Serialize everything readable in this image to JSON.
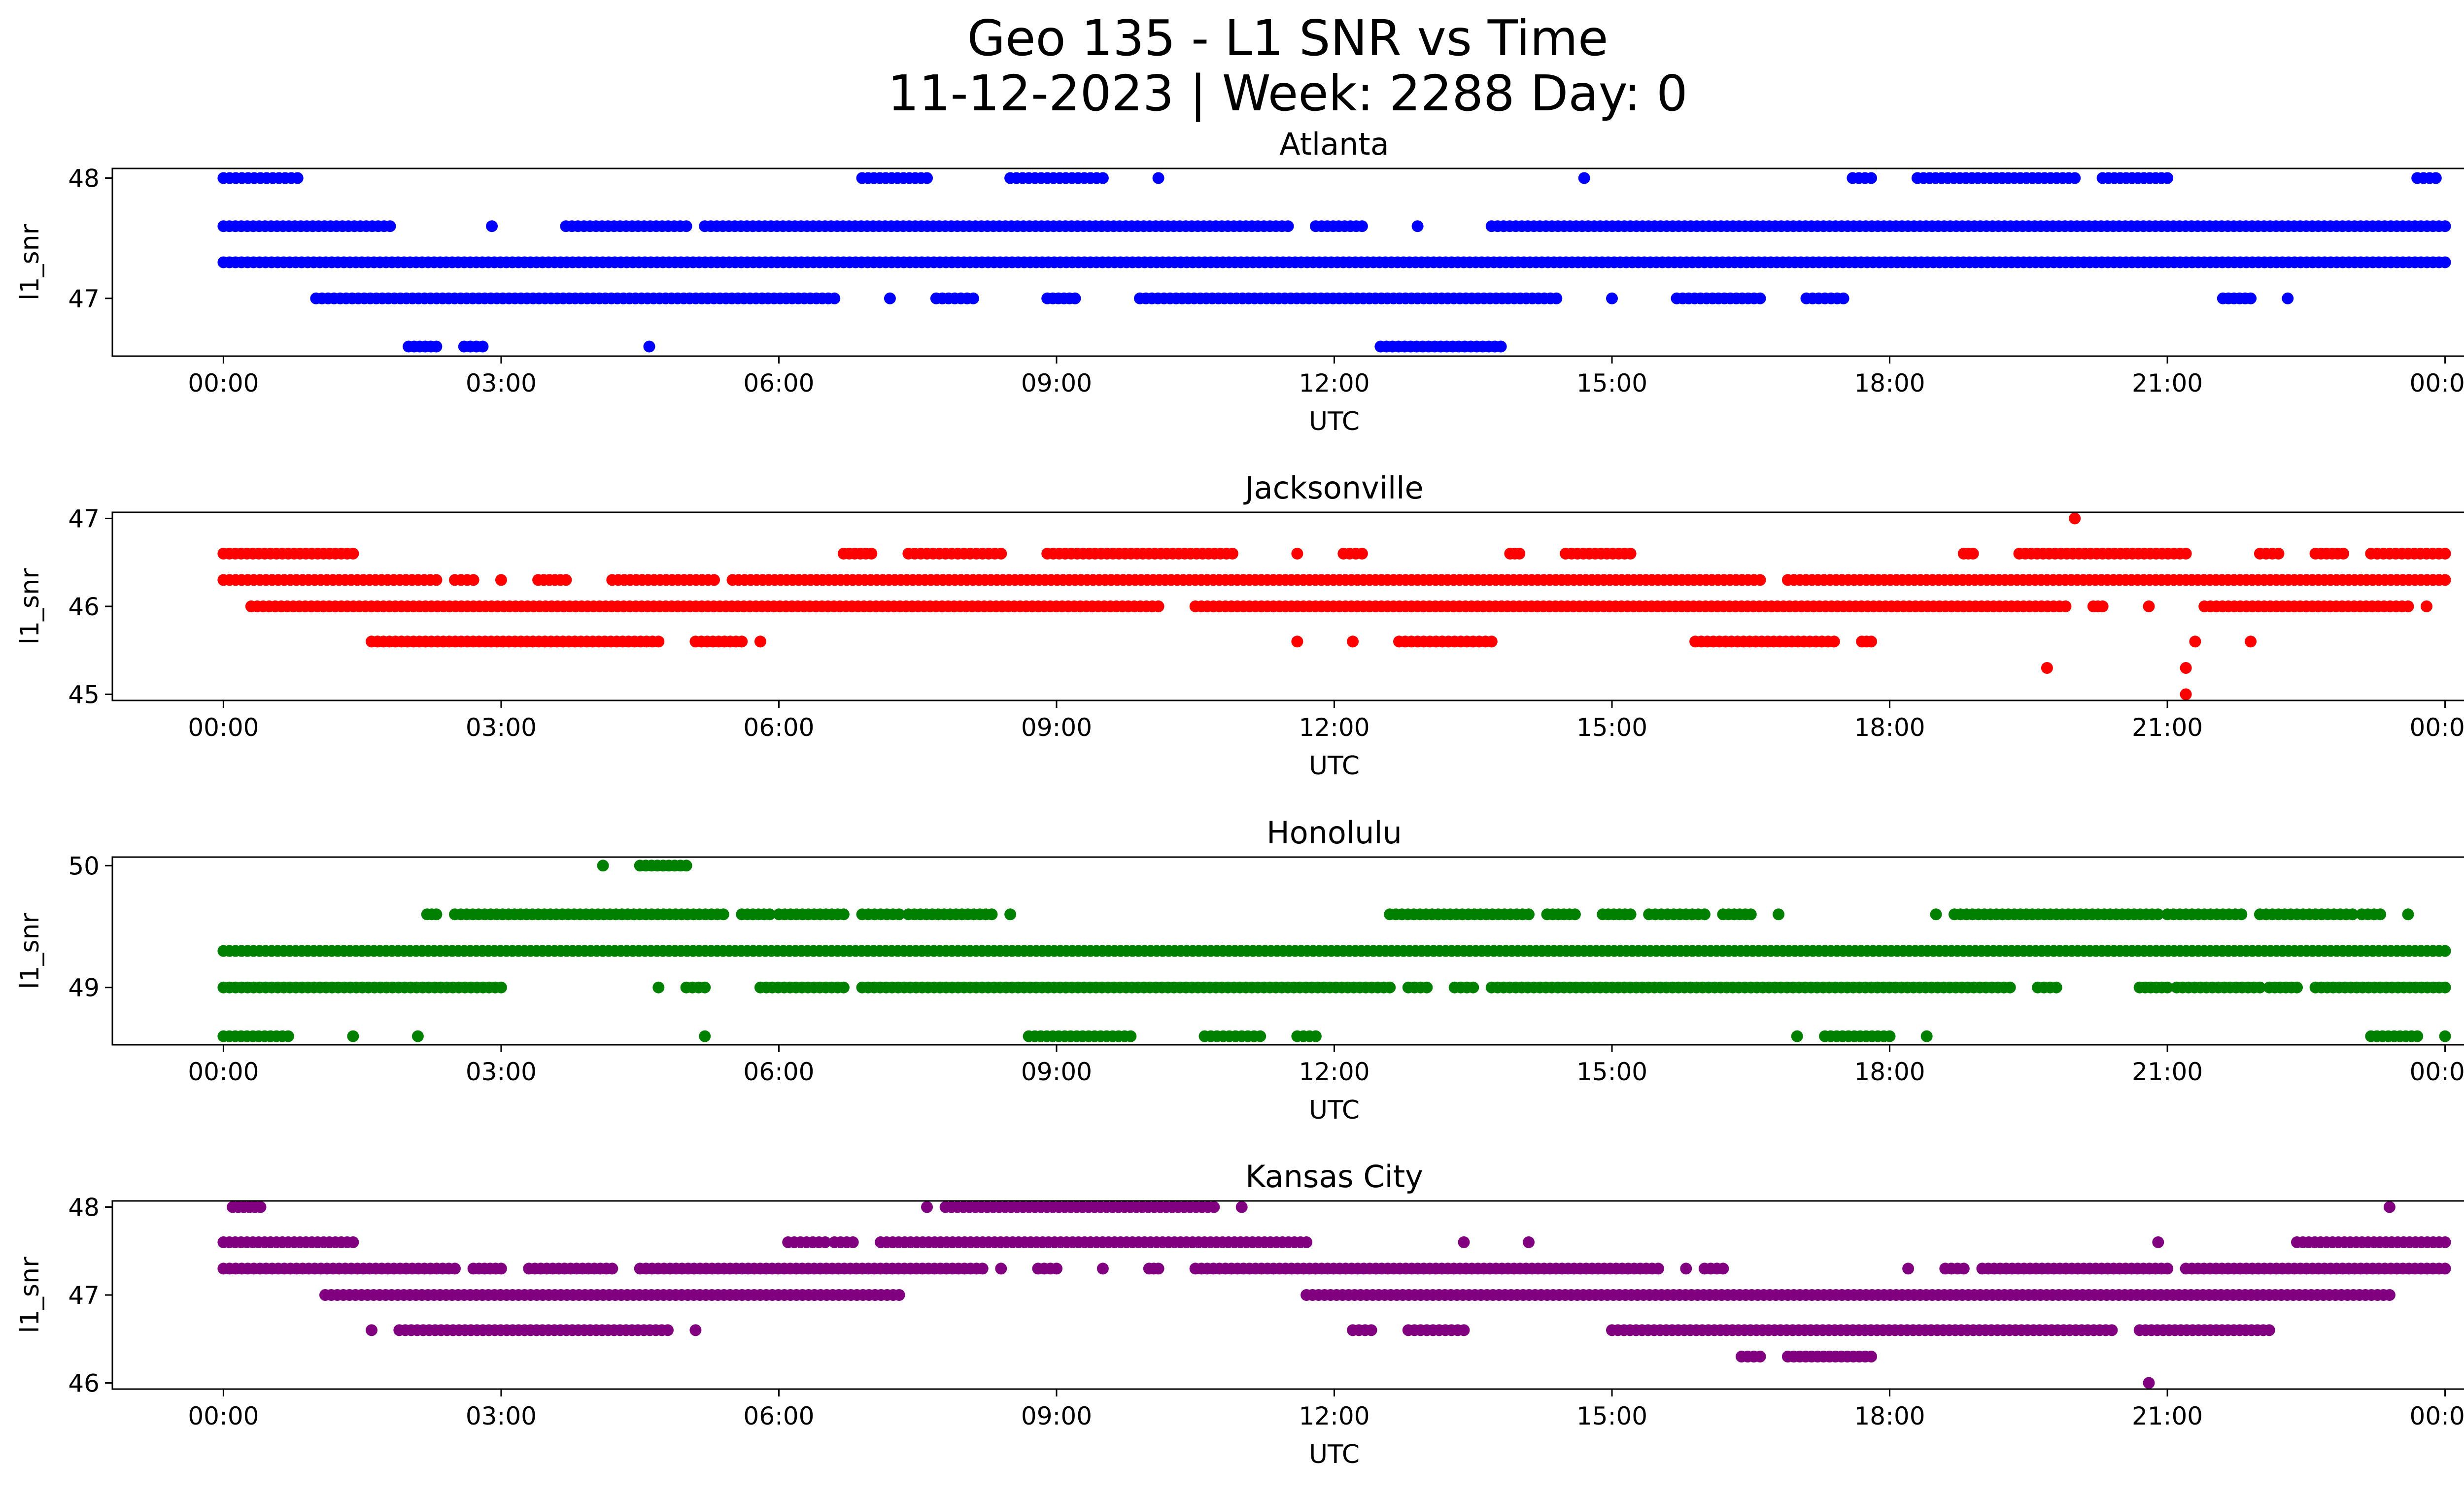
{
  "figure": {
    "title_line1": "Geo 135 - L1 SNR vs Time",
    "title_line2": "11-12-2023 | Week: 2288 Day: 0"
  },
  "chart_data": [
    {
      "type": "scatter",
      "title": "Atlanta",
      "xlabel": "UTC",
      "ylabel": "l1_snr",
      "color": "#0000ff",
      "x_ticks": [
        "00:00",
        "03:00",
        "06:00",
        "09:00",
        "12:00",
        "15:00",
        "18:00",
        "21:00",
        "00:00"
      ],
      "y_ticks": [
        47,
        48
      ],
      "xlim_hours": [
        -1.2,
        25.2
      ],
      "ylim": [
        46.52,
        48.08
      ],
      "grid": false,
      "legend": "none",
      "series": [
        {
          "y": 48.0,
          "x_ranges": [
            [
              0.0,
              0.8
            ],
            [
              6.9,
              7.6
            ],
            [
              8.5,
              9.5
            ],
            [
              10.1,
              10.1
            ],
            [
              14.7,
              14.7
            ],
            [
              17.6,
              17.8
            ],
            [
              18.3,
              20.0
            ],
            [
              20.3,
              21.0
            ],
            [
              23.7,
              23.9
            ]
          ]
        },
        {
          "y": 47.6,
          "x_ranges": [
            [
              0.0,
              1.8
            ],
            [
              2.9,
              2.9
            ],
            [
              3.7,
              5.0
            ],
            [
              5.2,
              11.5
            ],
            [
              11.8,
              12.3
            ],
            [
              12.9,
              12.9
            ],
            [
              13.7,
              24.0
            ]
          ]
        },
        {
          "y": 47.3,
          "x_ranges": [
            [
              0.0,
              24.0
            ]
          ]
        },
        {
          "y": 47.0,
          "x_ranges": [
            [
              1.0,
              6.6
            ],
            [
              7.2,
              7.2
            ],
            [
              7.7,
              8.1
            ],
            [
              8.9,
              9.2
            ],
            [
              9.9,
              14.4
            ],
            [
              15.0,
              15.0
            ],
            [
              15.7,
              16.6
            ],
            [
              17.1,
              17.5
            ],
            [
              21.6,
              21.9
            ],
            [
              22.3,
              22.3
            ]
          ]
        },
        {
          "y": 46.6,
          "x_ranges": [
            [
              2.0,
              2.3
            ],
            [
              2.6,
              2.8
            ],
            [
              4.6,
              4.6
            ],
            [
              12.5,
              13.8
            ]
          ]
        }
      ]
    },
    {
      "type": "scatter",
      "title": "Jacksonville",
      "xlabel": "UTC",
      "ylabel": "l1_snr",
      "color": "#ff0000",
      "x_ticks": [
        "00:00",
        "03:00",
        "06:00",
        "09:00",
        "12:00",
        "15:00",
        "18:00",
        "21:00",
        "00:00"
      ],
      "y_ticks": [
        45,
        46,
        47
      ],
      "xlim_hours": [
        -1.2,
        25.2
      ],
      "ylim": [
        44.93,
        47.07
      ],
      "grid": false,
      "legend": "none",
      "series": [
        {
          "y": 47.0,
          "x_ranges": [
            [
              20.0,
              20.0
            ]
          ]
        },
        {
          "y": 46.6,
          "x_ranges": [
            [
              0.0,
              1.4
            ],
            [
              6.7,
              7.0
            ],
            [
              7.4,
              8.4
            ],
            [
              8.9,
              10.9
            ],
            [
              11.6,
              11.6
            ],
            [
              12.1,
              12.3
            ],
            [
              13.9,
              14.0
            ],
            [
              14.5,
              15.2
            ],
            [
              18.8,
              18.9
            ],
            [
              19.4,
              21.2
            ],
            [
              22.0,
              22.2
            ],
            [
              22.6,
              22.9
            ],
            [
              23.2,
              24.0
            ]
          ]
        },
        {
          "y": 46.3,
          "x_ranges": [
            [
              0.0,
              2.3
            ],
            [
              2.5,
              2.7
            ],
            [
              3.0,
              3.0
            ],
            [
              3.4,
              3.7
            ],
            [
              4.2,
              5.3
            ],
            [
              5.5,
              16.6
            ],
            [
              16.9,
              24.0
            ]
          ]
        },
        {
          "y": 46.0,
          "x_ranges": [
            [
              0.3,
              10.1
            ],
            [
              10.5,
              19.9
            ],
            [
              20.2,
              20.3
            ],
            [
              20.8,
              20.8
            ],
            [
              21.4,
              23.6
            ],
            [
              23.8,
              23.8
            ]
          ]
        },
        {
          "y": 45.6,
          "x_ranges": [
            [
              1.6,
              4.7
            ],
            [
              5.1,
              5.6
            ],
            [
              5.8,
              5.8
            ],
            [
              11.6,
              11.6
            ],
            [
              12.2,
              12.2
            ],
            [
              12.7,
              13.7
            ],
            [
              15.9,
              17.4
            ],
            [
              17.7,
              17.8
            ],
            [
              21.3,
              21.3
            ],
            [
              21.9,
              21.9
            ]
          ]
        },
        {
          "y": 45.3,
          "x_ranges": [
            [
              19.7,
              19.7
            ],
            [
              21.2,
              21.2
            ]
          ]
        },
        {
          "y": 45.0,
          "x_ranges": [
            [
              21.2,
              21.2
            ]
          ]
        }
      ]
    },
    {
      "type": "scatter",
      "title": "Honolulu",
      "xlabel": "UTC",
      "ylabel": "l1_snr",
      "color": "#008000",
      "x_ticks": [
        "00:00",
        "03:00",
        "06:00",
        "09:00",
        "12:00",
        "15:00",
        "18:00",
        "21:00",
        "00:00"
      ],
      "y_ticks": [
        49,
        50
      ],
      "xlim_hours": [
        -1.2,
        25.2
      ],
      "ylim": [
        48.53,
        50.07
      ],
      "grid": false,
      "legend": "none",
      "series": [
        {
          "y": 50.0,
          "x_ranges": [
            [
              4.1,
              4.1
            ],
            [
              4.5,
              5.0
            ]
          ]
        },
        {
          "y": 49.6,
          "x_ranges": [
            [
              2.2,
              2.3
            ],
            [
              2.5,
              5.4
            ],
            [
              5.6,
              5.9
            ],
            [
              6.0,
              6.7
            ],
            [
              6.9,
              7.3
            ],
            [
              7.4,
              8.3
            ],
            [
              8.5,
              8.5
            ],
            [
              12.6,
              14.1
            ],
            [
              14.3,
              14.6
            ],
            [
              14.9,
              15.2
            ],
            [
              15.4,
              16.0
            ],
            [
              16.2,
              16.5
            ],
            [
              16.8,
              16.8
            ],
            [
              18.5,
              18.5
            ],
            [
              18.7,
              20.9
            ],
            [
              21.0,
              21.8
            ],
            [
              22.0,
              23.0
            ],
            [
              23.1,
              23.3
            ],
            [
              23.6,
              23.6
            ]
          ]
        },
        {
          "y": 49.3,
          "x_ranges": [
            [
              0.0,
              24.0
            ]
          ]
        },
        {
          "y": 49.0,
          "x_ranges": [
            [
              0.0,
              3.0
            ],
            [
              4.7,
              4.7
            ],
            [
              5.0,
              5.2
            ],
            [
              5.8,
              6.7
            ],
            [
              6.9,
              12.6
            ],
            [
              12.8,
              13.0
            ],
            [
              13.3,
              13.5
            ],
            [
              13.7,
              19.3
            ],
            [
              19.6,
              19.8
            ],
            [
              20.7,
              21.0
            ],
            [
              21.1,
              22.0
            ],
            [
              22.1,
              22.4
            ],
            [
              22.6,
              24.0
            ]
          ]
        },
        {
          "y": 48.6,
          "x_ranges": [
            [
              0.0,
              0.7
            ],
            [
              1.4,
              1.4
            ],
            [
              2.1,
              2.1
            ],
            [
              5.2,
              5.2
            ],
            [
              8.7,
              9.8
            ],
            [
              10.6,
              11.2
            ],
            [
              11.6,
              11.8
            ],
            [
              17.0,
              17.0
            ],
            [
              17.3,
              18.0
            ],
            [
              18.4,
              18.4
            ],
            [
              23.2,
              23.7
            ],
            [
              24.0,
              24.0
            ]
          ]
        }
      ]
    },
    {
      "type": "scatter",
      "title": "Kansas City",
      "xlabel": "UTC",
      "ylabel": "l1_snr",
      "color": "#800080",
      "x_ticks": [
        "00:00",
        "03:00",
        "06:00",
        "09:00",
        "12:00",
        "15:00",
        "18:00",
        "21:00",
        "00:00"
      ],
      "y_ticks": [
        46,
        47,
        48
      ],
      "xlim_hours": [
        -1.2,
        25.2
      ],
      "ylim": [
        45.93,
        48.07
      ],
      "grid": false,
      "legend": "none",
      "series": [
        {
          "y": 48.0,
          "x_ranges": [
            [
              0.1,
              0.4
            ],
            [
              7.6,
              7.6
            ],
            [
              7.8,
              10.7
            ],
            [
              11.0,
              11.0
            ],
            [
              23.4,
              23.4
            ]
          ]
        },
        {
          "y": 47.6,
          "x_ranges": [
            [
              0.0,
              1.4
            ],
            [
              6.1,
              6.5
            ],
            [
              6.6,
              6.8
            ],
            [
              7.1,
              11.7
            ],
            [
              13.4,
              13.4
            ],
            [
              14.1,
              14.1
            ],
            [
              20.9,
              20.9
            ],
            [
              22.4,
              24.0
            ]
          ]
        },
        {
          "y": 47.3,
          "x_ranges": [
            [
              0.0,
              2.5
            ],
            [
              2.7,
              3.0
            ],
            [
              3.3,
              4.2
            ],
            [
              4.5,
              8.2
            ],
            [
              8.4,
              8.4
            ],
            [
              8.8,
              9.0
            ],
            [
              9.5,
              9.5
            ],
            [
              10.0,
              10.1
            ],
            [
              10.5,
              15.5
            ],
            [
              15.8,
              15.8
            ],
            [
              16.0,
              16.2
            ],
            [
              18.2,
              18.2
            ],
            [
              18.6,
              18.8
            ],
            [
              19.0,
              21.0
            ],
            [
              21.2,
              24.0
            ]
          ]
        },
        {
          "y": 47.0,
          "x_ranges": [
            [
              1.1,
              7.3
            ],
            [
              11.7,
              23.4
            ]
          ]
        },
        {
          "y": 46.6,
          "x_ranges": [
            [
              1.6,
              1.6
            ],
            [
              1.9,
              4.8
            ],
            [
              5.1,
              5.1
            ],
            [
              12.2,
              12.4
            ],
            [
              12.8,
              13.4
            ],
            [
              15.0,
              20.4
            ],
            [
              20.7,
              22.1
            ]
          ]
        },
        {
          "y": 46.3,
          "x_ranges": [
            [
              16.4,
              16.6
            ],
            [
              16.9,
              17.8
            ]
          ]
        },
        {
          "y": 46.0,
          "x_ranges": [
            [
              20.8,
              20.8
            ]
          ]
        }
      ]
    }
  ]
}
